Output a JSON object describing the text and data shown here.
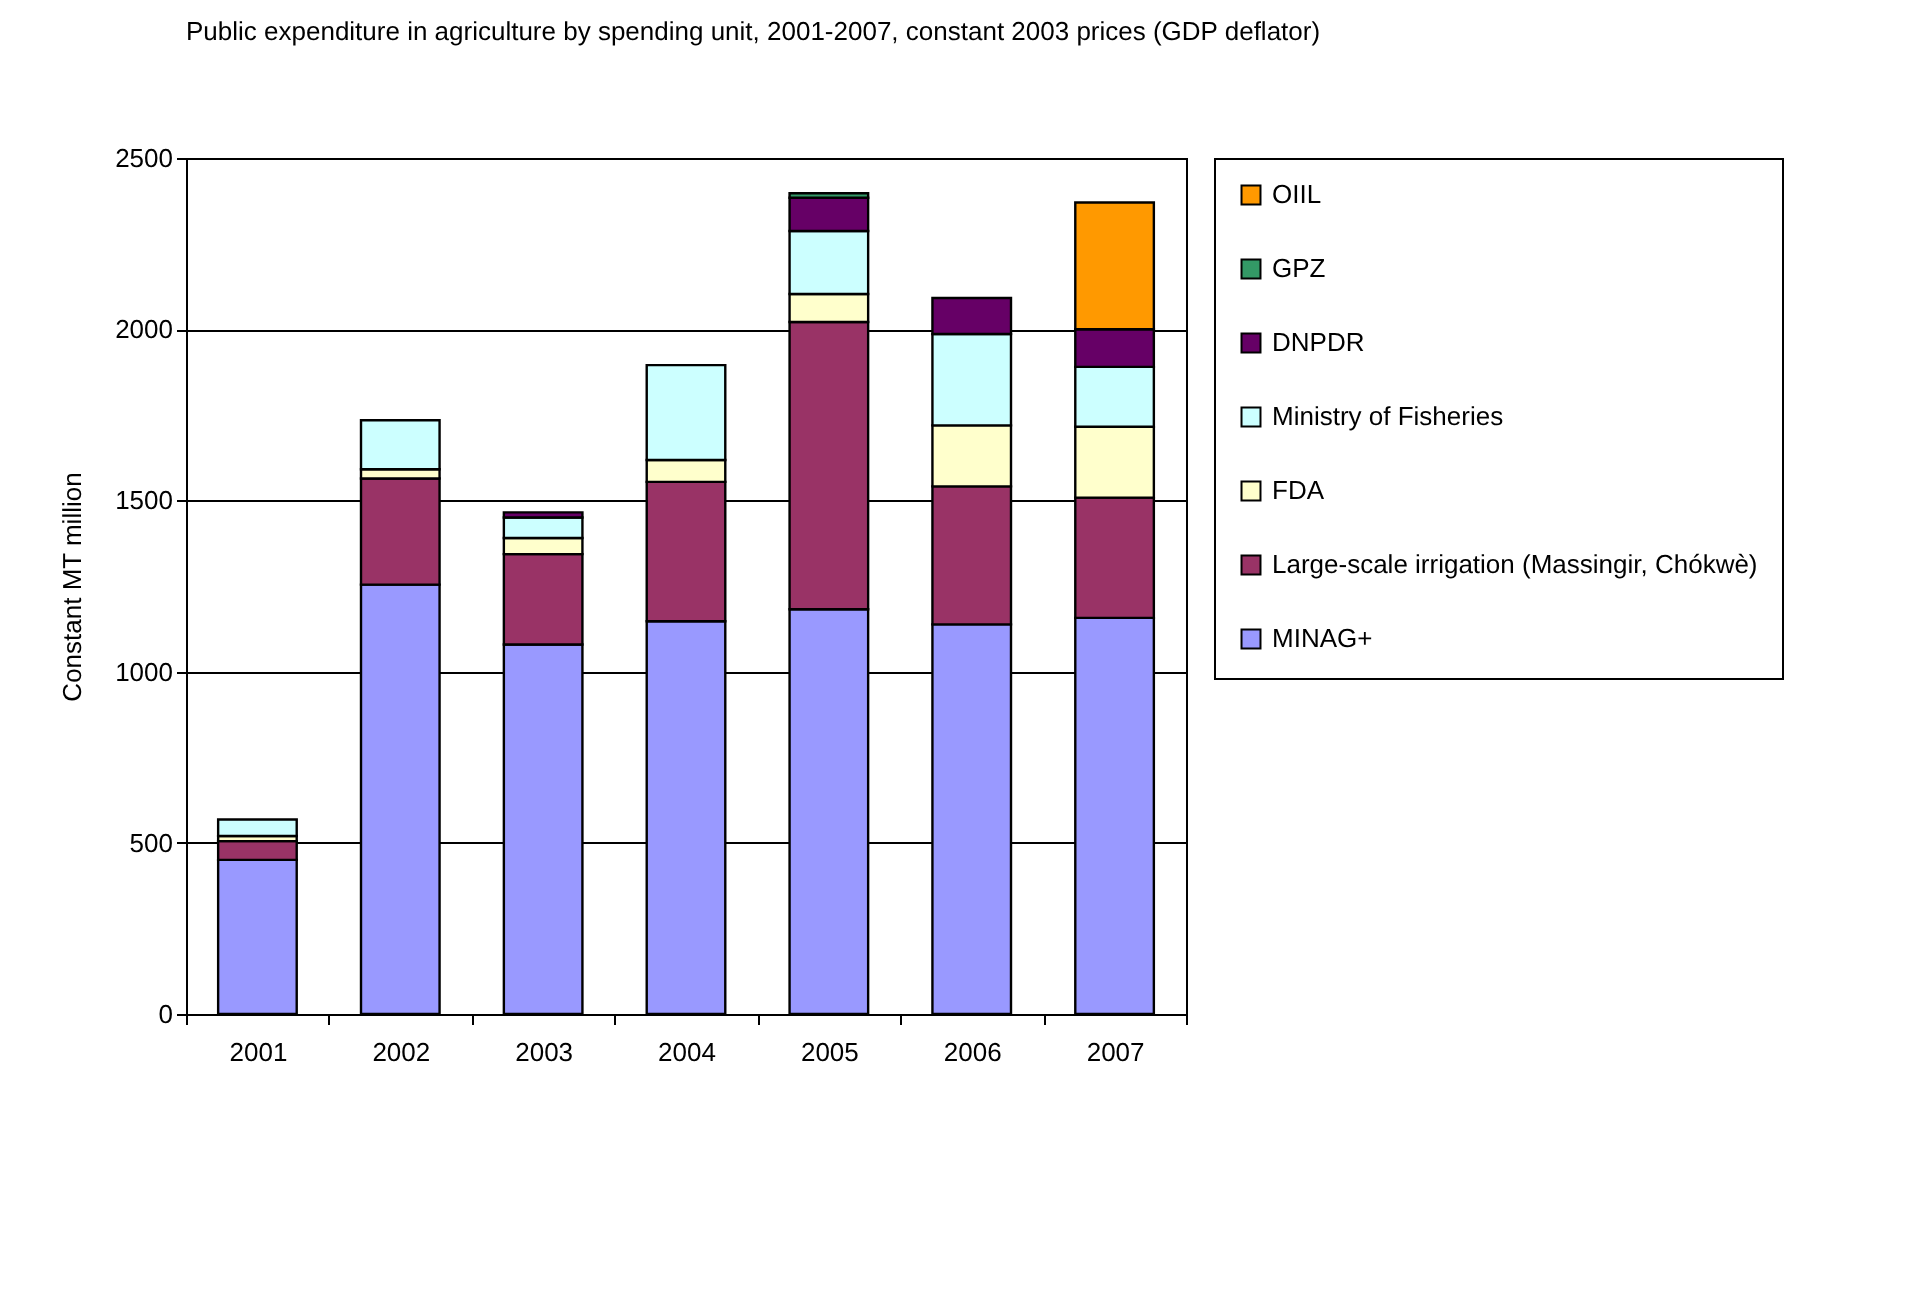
{
  "chart_data": {
    "type": "bar",
    "title": "Public expenditure in agriculture by spending unit, 2001-2007, constant 2003 prices (GDP deflator)",
    "ylabel": "Constant MT million",
    "categories": [
      "2001",
      "2002",
      "2003",
      "2004",
      "2005",
      "2006",
      "2007"
    ],
    "stacked": true,
    "series": [
      {
        "name": "MINAG+",
        "color": "#9999ff",
        "values": [
          450,
          1254,
          1079,
          1147,
          1182,
          1138,
          1157
        ]
      },
      {
        "name": "Large-scale irrigation (Massingir, Chókwè)",
        "color": "#993366",
        "values": [
          55,
          310,
          264,
          407,
          839,
          403,
          351
        ]
      },
      {
        "name": "FDA",
        "color": "#ffffcc",
        "values": [
          15,
          27,
          47,
          64,
          82,
          178,
          207
        ]
      },
      {
        "name": "Ministry of Fisheries",
        "color": "#ccffff",
        "values": [
          48,
          143,
          60,
          277,
          184,
          267,
          175
        ]
      },
      {
        "name": "DNPDR",
        "color": "#660066",
        "values": [
          null,
          null,
          15,
          null,
          97,
          105,
          110
        ]
      },
      {
        "name": "GPZ",
        "color": "#339966",
        "values": [
          null,
          null,
          null,
          null,
          13,
          null,
          null
        ]
      },
      {
        "name": "OIIL",
        "color": "#ff9900",
        "values": [
          null,
          null,
          null,
          null,
          null,
          null,
          370
        ]
      }
    ],
    "ylim": [
      0,
      2500
    ],
    "yticks": [
      0,
      500,
      1000,
      1500,
      2000,
      2500
    ],
    "grid": "y",
    "legend": "right"
  }
}
